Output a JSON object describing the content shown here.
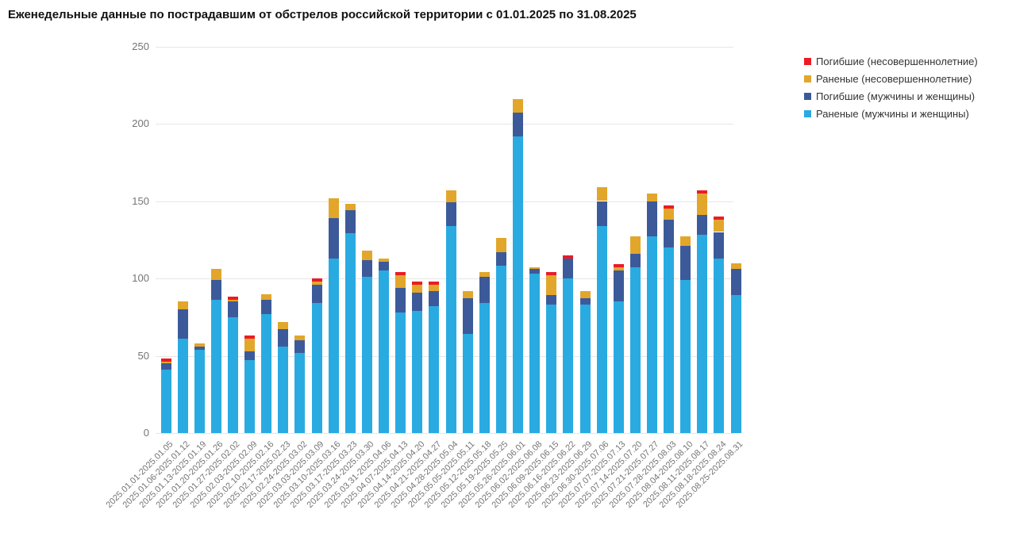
{
  "title": "Еженедельные данные по пострадавшим от обстрелов российской территории с 01.01.2025 по 31.08.2025",
  "legend": {
    "items": [
      {
        "label": "Погибшие (несовершеннолетние)",
        "color": "#EA1C24"
      },
      {
        "label": "Раненые (несовершеннолетние)",
        "color": "#E2A62B"
      },
      {
        "label": "Погибшие (мужчины и женщины)",
        "color": "#3C5A99"
      },
      {
        "label": "Раненые (мужчины и женщины)",
        "color": "#29ABE2"
      }
    ]
  },
  "axis": {
    "y_ticks": [
      0,
      50,
      100,
      150,
      200,
      250
    ]
  },
  "chart_data": {
    "type": "bar",
    "stacked": true,
    "title": "Еженедельные данные по пострадавшим от обстрелов российской территории с 01.01.2025 по 31.08.2025",
    "xlabel": "",
    "ylabel": "",
    "ylim": [
      0,
      250
    ],
    "grid": true,
    "legend_position": "top-right",
    "x_tick_rotation": 45,
    "categories": [
      "2025.01.01-2025.01.05",
      "2025.01.06-2025.01.12",
      "2025.01.13-2025.01.19",
      "2025.01.20-2025.01.26",
      "2025.01.27-2025.02.02",
      "2025.02.03-2025.02.09",
      "2025.02.10-2025.02.16",
      "2025.02.17-2025.02.23",
      "2025.02.24-2025.03.02",
      "2025.03.03-2025.03.09",
      "2025.03.10-2025.03.16",
      "2025.03.17-2025.03.23",
      "2025.03.24-2025.03.30",
      "2025.03.31-2025.04.06",
      "2025.04.07-2025.04.13",
      "2025.04.14-2025.04.20",
      "2025.04.21-2025.04.27",
      "2025.04.28-2025.05.04",
      "2025.05.05-2025.05.11",
      "2025.05.12-2025.05.18",
      "2025.05.19-2025.05.25",
      "2025.05.26-2025.06.01",
      "2025.06.02-2025.06.08",
      "2025.06.09-2025.06.15",
      "2025.06.16-2025.06.22",
      "2025.06.23-2025.06.29",
      "2025.06.30-2025.07.06",
      "2025.07.07-2025.07.13",
      "2025.07.14-2025.07.20",
      "2025.07.21-2025.07.27",
      "2025.07.28-2025.08.03",
      "2025.08.04-2025.08.10",
      "2025.08.11-2025.08.17",
      "2025.08.18-2025.08.24",
      "2025.08.25-2025.08.31"
    ],
    "series": [
      {
        "name": "Раненые (мужчины и женщины)",
        "color": "#29ABE2",
        "values": [
          41,
          61,
          54,
          86,
          75,
          47,
          77,
          56,
          52,
          84,
          113,
          129,
          101,
          105,
          78,
          79,
          82,
          134,
          64,
          84,
          108,
          192,
          103,
          83,
          100,
          83,
          134,
          85,
          107,
          127,
          120,
          99,
          128,
          113,
          89
        ]
      },
      {
        "name": "Погибшие (мужчины и женщины)",
        "color": "#3C5A99",
        "values": [
          4,
          19,
          2,
          13,
          10,
          6,
          9,
          11,
          8,
          12,
          26,
          15,
          11,
          6,
          16,
          12,
          10,
          15,
          23,
          17,
          9,
          15,
          3,
          6,
          13,
          4,
          16,
          20,
          9,
          23,
          18,
          22,
          13,
          17,
          17
        ]
      },
      {
        "name": "Раненые (несовершеннолетние)",
        "color": "#E2A62B",
        "values": [
          1,
          5,
          2,
          7,
          1,
          8,
          4,
          5,
          3,
          2,
          13,
          4,
          6,
          2,
          8,
          5,
          4,
          8,
          5,
          3,
          9,
          9,
          1,
          13,
          0,
          5,
          9,
          2,
          11,
          5,
          7,
          6,
          14,
          8,
          4
        ]
      },
      {
        "name": "Погибшие (несовершеннолетние)",
        "color": "#EA1C24",
        "values": [
          2,
          0,
          0,
          0,
          2,
          2,
          0,
          0,
          0,
          2,
          0,
          0,
          0,
          0,
          2,
          2,
          2,
          0,
          0,
          0,
          0,
          0,
          0,
          2,
          2,
          0,
          0,
          2,
          0,
          0,
          2,
          0,
          2,
          2,
          0
        ]
      }
    ]
  }
}
